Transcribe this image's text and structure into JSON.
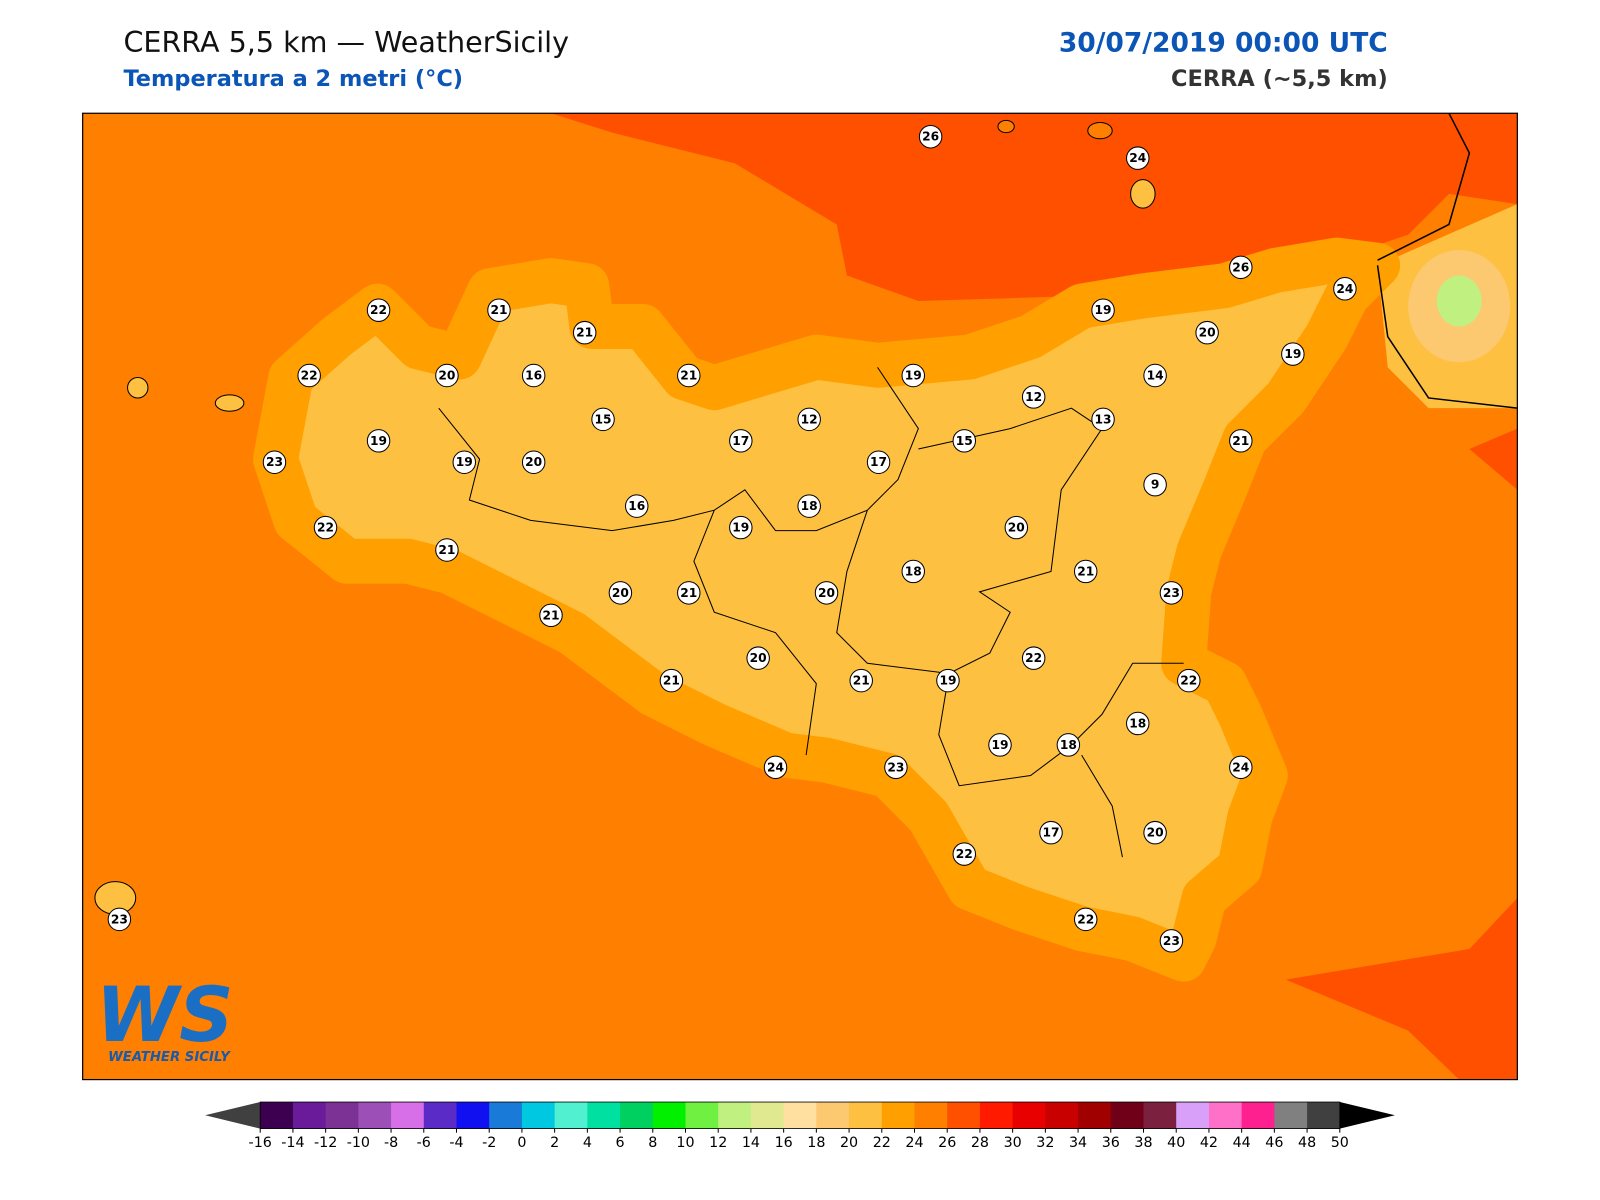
{
  "header": {
    "title": "CERRA 5,5 km — WeatherSicily",
    "subtitle": "Temperatura a 2 metri (°C)",
    "datetime": "30/07/2019 00:00 UTC",
    "model": "CERRA (~5,5 km)"
  },
  "map": {
    "stations": [
      26,
      24,
      26,
      24,
      22,
      21,
      21,
      19,
      20,
      19,
      22,
      20,
      16,
      21,
      19,
      14,
      12,
      15,
      12,
      13,
      19,
      17,
      15,
      21,
      23,
      19,
      20,
      17,
      9,
      16,
      18,
      22,
      19,
      20,
      21,
      18,
      21,
      20,
      21,
      20,
      23,
      21,
      20,
      22,
      21,
      21,
      19,
      22,
      18,
      19,
      18,
      24,
      23,
      24,
      17,
      20,
      22,
      23,
      22,
      23
    ]
  },
  "colorbar": {
    "ticks": [
      -16,
      -14,
      -12,
      -10,
      -8,
      -6,
      -4,
      -2,
      0,
      2,
      4,
      6,
      8,
      10,
      12,
      14,
      16,
      18,
      20,
      22,
      24,
      26,
      28,
      30,
      32,
      34,
      36,
      38,
      40,
      42,
      44,
      46,
      48,
      50
    ],
    "colors": [
      "#3d0050",
      "#6a1b9a",
      "#7b3294",
      "#9c4fb7",
      "#d770e8",
      "#5a2bc6",
      "#1010f0",
      "#1a7ad8",
      "#00c8e0",
      "#50f0d0",
      "#00e0a0",
      "#00d060",
      "#00f000",
      "#70f040",
      "#c0f080",
      "#e0e890",
      "#ffe0a0",
      "#fcc870",
      "#fdc040",
      "#ff9f00",
      "#ff7f00",
      "#ff5000",
      "#ff1a00",
      "#e80000",
      "#c80000",
      "#a00000",
      "#700018",
      "#7c2040",
      "#d8a0f8",
      "#ff70c8",
      "#ff2090",
      "#808080",
      "#404040"
    ],
    "under_color": "#404040",
    "over_color": "#000000"
  },
  "logo": {
    "mark": "WS",
    "text": "WEATHER SICILY"
  }
}
